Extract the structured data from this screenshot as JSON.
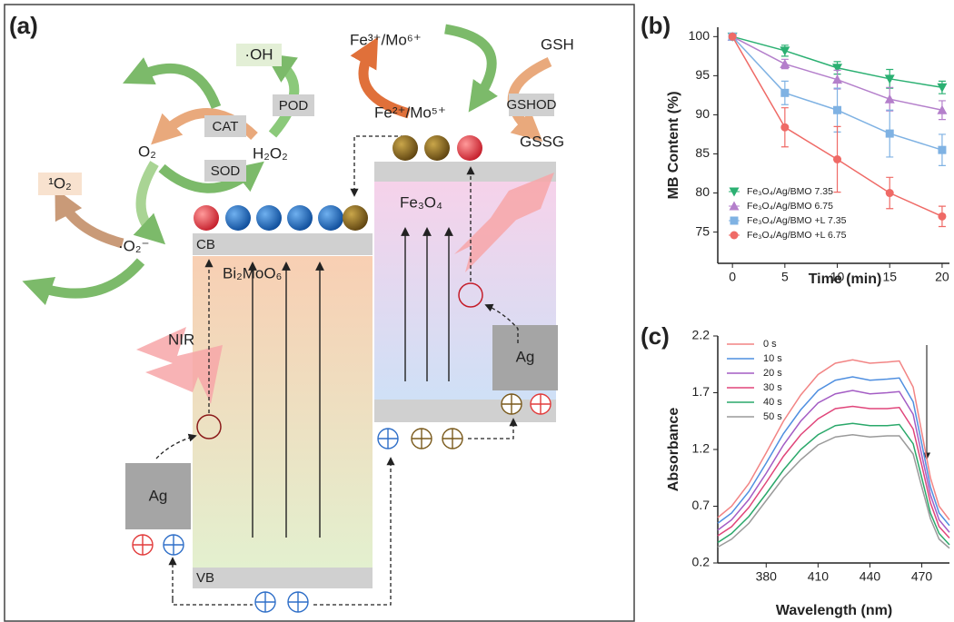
{
  "diagram": {
    "panel_label": "(a)",
    "labels": {
      "oh": "·OH",
      "fe_high": "Fe³⁺/Mo⁶⁺",
      "fe_low": "Fe²⁺/Mo⁵⁺",
      "gsh": "GSH",
      "gshod": "GSHOD",
      "gssg": "GSSG",
      "pod": "POD",
      "cat": "CAT",
      "sod": "SOD",
      "o2": "O₂",
      "h2o2": "H₂O₂",
      "singlet_o2": "¹O₂",
      "superoxide": "·O₂⁻",
      "cb": "CB",
      "vb": "VB",
      "bi2moo6": "Bi₂MoO₆",
      "fe3o4": "Fe₃O₄",
      "ag_left": "Ag",
      "ag_right": "Ag",
      "nir": "NIR"
    }
  },
  "chart_data": [
    {
      "type": "line",
      "panel_label": "(b)",
      "x_label": "Time (min)",
      "y_label": "MB Content (%)",
      "x": [
        0,
        5,
        10,
        15,
        20
      ],
      "xlim": [
        -1.4,
        20.7
      ],
      "ylim": [
        71,
        101.2
      ],
      "xticks": [
        0,
        5,
        10,
        15,
        20
      ],
      "yticks": [
        75,
        80,
        85,
        90,
        95,
        100
      ],
      "grid": false,
      "legend": "lower left",
      "series": [
        {
          "name": "Fe₃O₄/Ag/BMO 7.35",
          "color": "#2bb072",
          "marker": "triangle-down",
          "values": [
            100,
            98.2,
            96,
            94.6,
            93.5
          ],
          "errors": [
            0.2,
            0.7,
            0.8,
            1.2,
            0.8
          ]
        },
        {
          "name": "Fe₃O₄/Ag/BMO 6.75",
          "color": "#b47fcb",
          "marker": "triangle-up",
          "values": [
            100,
            96.5,
            94.5,
            92,
            90.6
          ],
          "errors": [
            0.2,
            0.6,
            1.2,
            1.5,
            1.2
          ]
        },
        {
          "name": "Fe₃O₄/Ag/BMO +L 7.35",
          "color": "#7fb2e3",
          "marker": "square",
          "values": [
            100,
            92.8,
            90.6,
            87.6,
            85.5
          ],
          "errors": [
            0.2,
            1.5,
            2.8,
            3.0,
            2.0
          ]
        },
        {
          "name": "Fe₃O₄/Ag/BMO +L 6.75",
          "color": "#ef6a66",
          "marker": "circle",
          "values": [
            100,
            88.4,
            84.3,
            80,
            77
          ],
          "errors": [
            0.2,
            2.5,
            4.2,
            2.0,
            1.3
          ]
        }
      ]
    },
    {
      "type": "line",
      "panel_label": "(c)",
      "x_label": "Wavelength (nm)",
      "y_label": "Absorbance",
      "x": [
        352,
        360,
        370,
        380,
        390,
        400,
        410,
        420,
        430,
        440,
        450,
        457,
        465,
        470,
        475,
        480,
        486
      ],
      "xlim": [
        352,
        486
      ],
      "ylim": [
        0.2,
        2.2
      ],
      "xticks": [
        380,
        410,
        440,
        470
      ],
      "yticks": [
        0.2,
        0.7,
        1.2,
        1.7,
        2.2
      ],
      "grid": false,
      "legend": "upper left",
      "series": [
        {
          "name": "0 s",
          "color": "#f28484",
          "values": [
            0.6,
            0.7,
            0.9,
            1.17,
            1.45,
            1.68,
            1.86,
            1.96,
            1.99,
            1.96,
            1.97,
            1.98,
            1.75,
            1.35,
            0.95,
            0.7,
            0.58
          ]
        },
        {
          "name": "10 s",
          "color": "#4f8fe0",
          "values": [
            0.55,
            0.64,
            0.83,
            1.08,
            1.34,
            1.55,
            1.72,
            1.81,
            1.84,
            1.81,
            1.82,
            1.83,
            1.62,
            1.25,
            0.87,
            0.64,
            0.53
          ]
        },
        {
          "name": "20 s",
          "color": "#a35cc4",
          "values": [
            0.49,
            0.58,
            0.76,
            0.99,
            1.24,
            1.45,
            1.61,
            1.69,
            1.72,
            1.69,
            1.7,
            1.71,
            1.51,
            1.15,
            0.8,
            0.58,
            0.47
          ]
        },
        {
          "name": "30 s",
          "color": "#e0457a",
          "values": [
            0.44,
            0.52,
            0.69,
            0.91,
            1.14,
            1.33,
            1.47,
            1.56,
            1.58,
            1.56,
            1.56,
            1.57,
            1.38,
            1.06,
            0.73,
            0.52,
            0.42
          ]
        },
        {
          "name": "40 s",
          "color": "#2aa86a",
          "values": [
            0.38,
            0.46,
            0.61,
            0.81,
            1.02,
            1.2,
            1.33,
            1.41,
            1.43,
            1.41,
            1.41,
            1.42,
            1.25,
            0.95,
            0.64,
            0.46,
            0.36
          ]
        },
        {
          "name": "50 s",
          "color": "#9a9a9a",
          "values": [
            0.34,
            0.41,
            0.55,
            0.75,
            0.95,
            1.11,
            1.24,
            1.31,
            1.33,
            1.31,
            1.32,
            1.32,
            1.16,
            0.87,
            0.59,
            0.41,
            0.33
          ]
        }
      ]
    }
  ]
}
